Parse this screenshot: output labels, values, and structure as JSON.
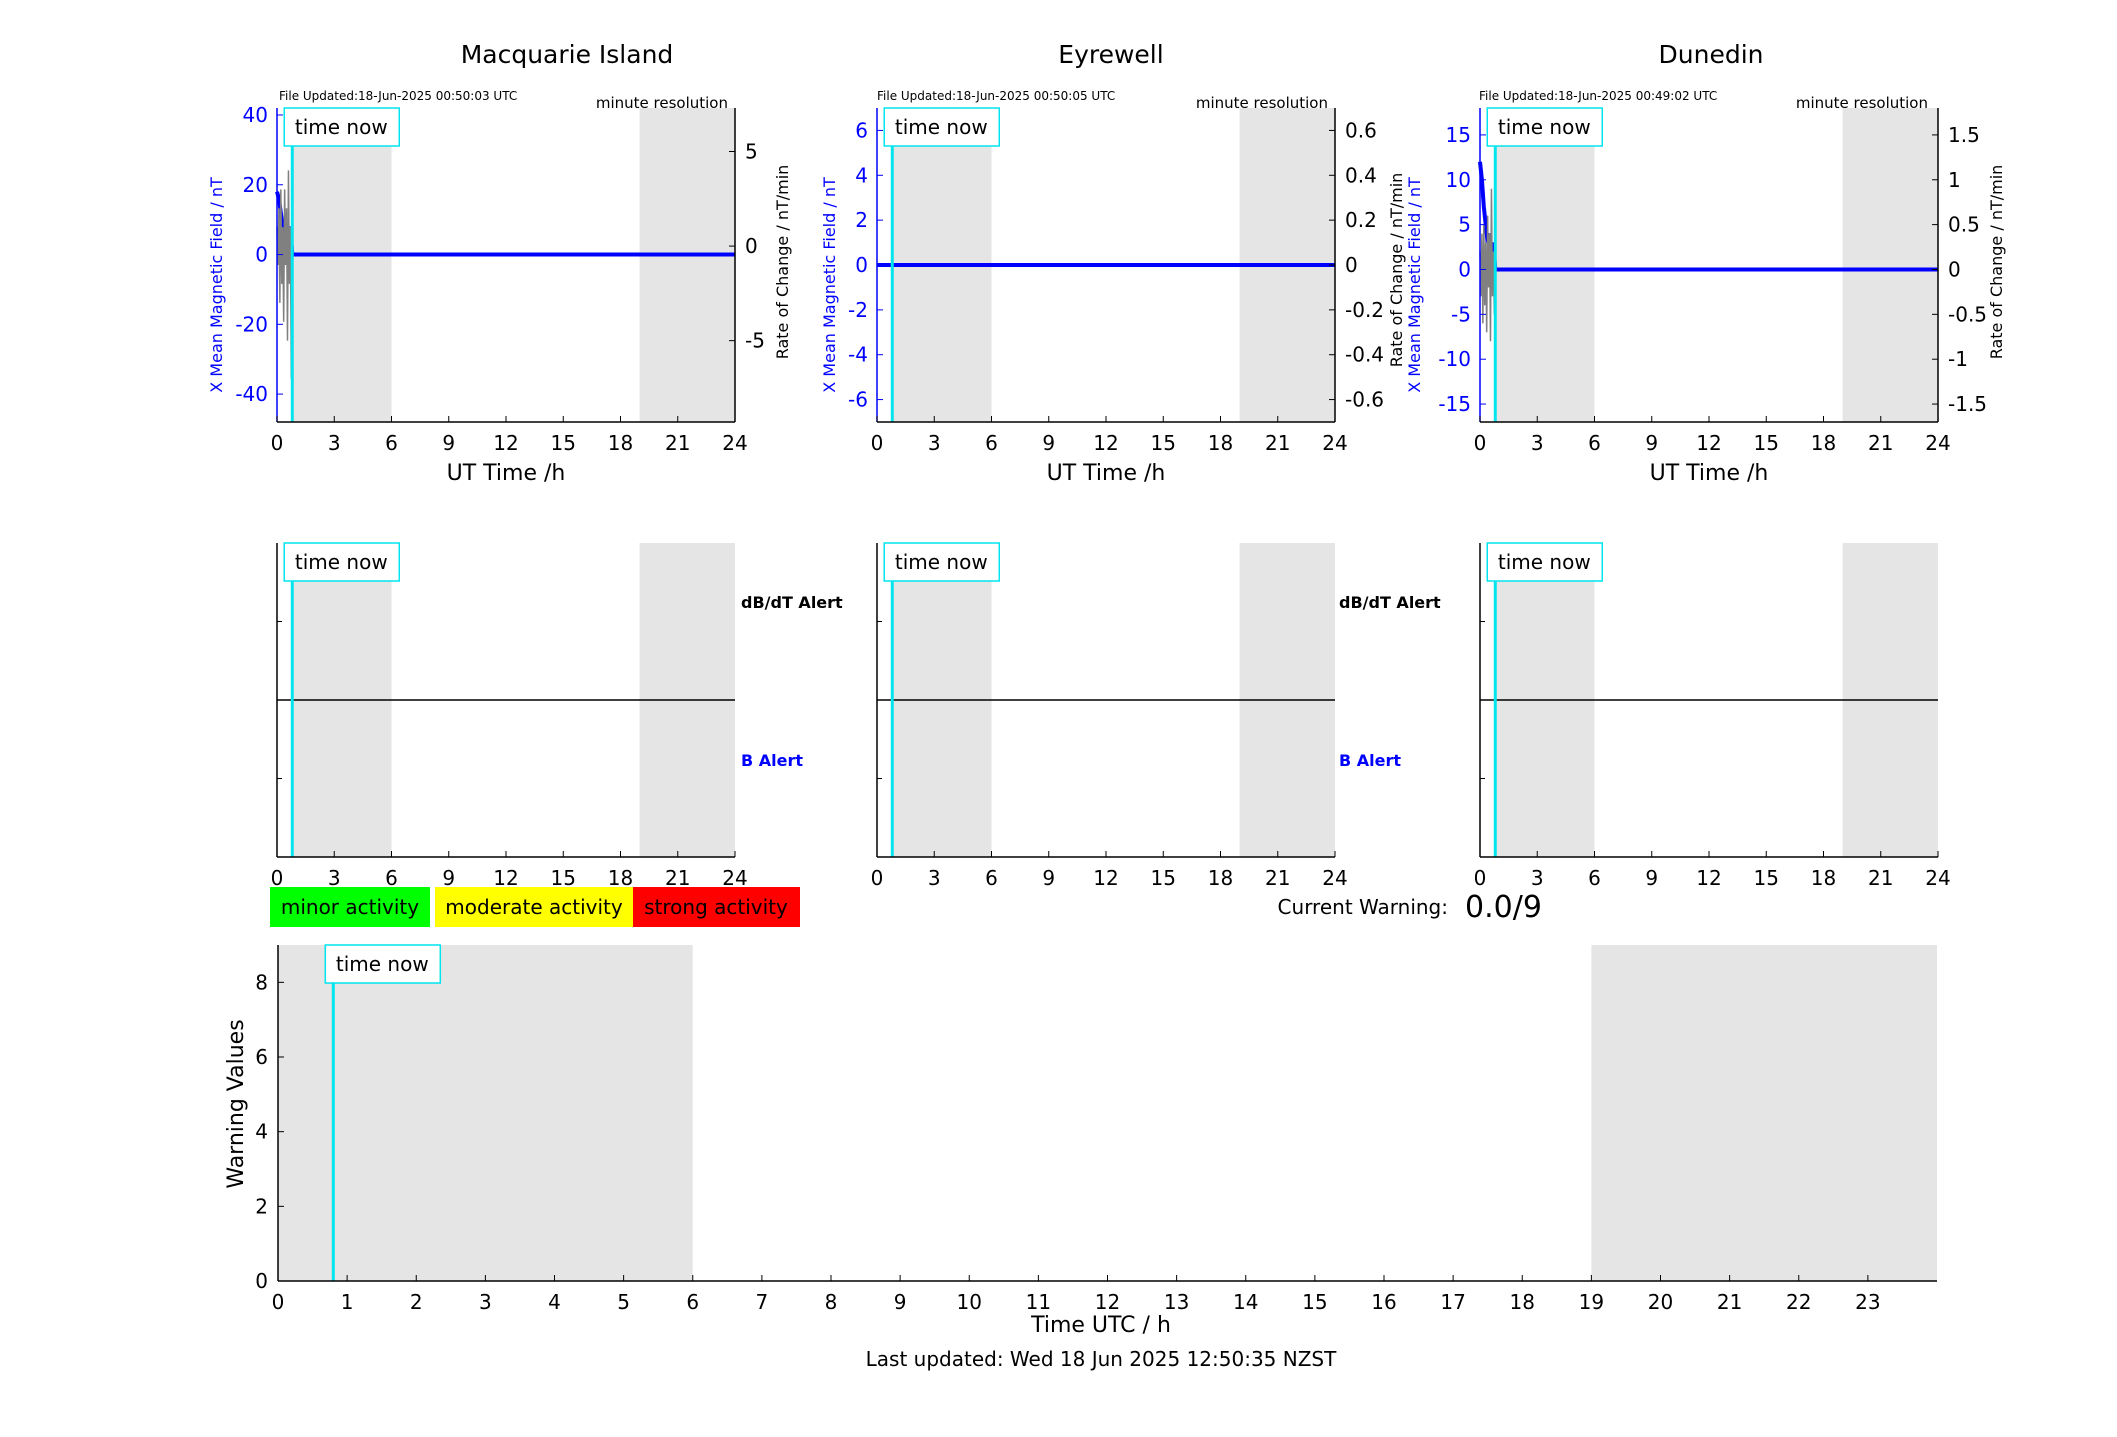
{
  "colors": {
    "night_shade": "#e5e5e5",
    "time_now": "#00e5ee",
    "x_field": "#0000ff",
    "rate": "#808080",
    "minor": "#00ff00",
    "moderate": "#ffff00",
    "strong": "#ff0000"
  },
  "common": {
    "time_now_label": "time now",
    "x_axis_label": "UT Time /h",
    "x_ticks": [
      "0",
      "3",
      "6",
      "9",
      "12",
      "15",
      "18",
      "21",
      "24"
    ],
    "resolution": "minute resolution",
    "dbdt_alert": "dB/dT Alert",
    "b_alert": "B Alert"
  },
  "stations": [
    {
      "name": "Macquarie Island",
      "file_updated": "File Updated:18-Jun-2025 00:50:03 UTC",
      "left_ylabel": "X Mean Magnetic Field / nT",
      "right_ylabel": "Rate of Change / nT/min",
      "left_ticks": [
        "40",
        "20",
        "0",
        "-20",
        "-40"
      ],
      "right_ticks": [
        "5",
        "0",
        "-5"
      ]
    },
    {
      "name": "Eyrewell",
      "file_updated": "File Updated:18-Jun-2025 00:50:05 UTC",
      "left_ylabel": "X Mean Magnetic Field / nT",
      "right_ylabel": "",
      "left_ticks": [
        "6",
        "4",
        "2",
        "0",
        "-2",
        "-4",
        "-6"
      ],
      "right_ticks": [
        "0.6",
        "0.4",
        "0.2",
        "0",
        "-0.2",
        "-0.4",
        "-0.6"
      ]
    },
    {
      "name": "Dunedin",
      "file_updated": "File Updated:18-Jun-2025 00:49:02 UTC",
      "left_ylabel": "X Mean Magnetic Field / nT",
      "right_ylabel": "Rate of Change / nT/min",
      "left_ticks": [
        "15",
        "10",
        "5",
        "0",
        "-5",
        "-10",
        "-15"
      ],
      "right_ticks": [
        "1.5",
        "1",
        "0.5",
        "0",
        "-0.5",
        "-1",
        "-1.5"
      ]
    }
  ],
  "overlap_label": "Rate of Change / nT/min",
  "legend": {
    "minor": "minor activity",
    "moderate": "moderate activity",
    "strong": "strong activity"
  },
  "current_warning": {
    "label": "Current Warning:",
    "value": "0.0/9"
  },
  "warning_chart": {
    "ylabel": "Warning Values",
    "xlabel": "Time UTC / h",
    "y_ticks": [
      "0",
      "2",
      "4",
      "6",
      "8"
    ],
    "x_ticks": [
      "0",
      "1",
      "2",
      "3",
      "4",
      "5",
      "6",
      "7",
      "8",
      "9",
      "10",
      "11",
      "12",
      "13",
      "14",
      "15",
      "16",
      "17",
      "18",
      "19",
      "20",
      "21",
      "22",
      "23"
    ]
  },
  "last_updated": "Last updated: Wed 18 Jun 2025 12:50:35 NZST",
  "chart_data": [
    {
      "type": "line",
      "title": "Macquarie Island",
      "xlabel": "UT Time /h",
      "ylabel": "X Mean Magnetic Field / nT",
      "y2label": "Rate of Change / nT/min",
      "xlim": [
        0,
        24
      ],
      "ylim": [
        -48,
        42
      ],
      "y2lim": [
        -9.3,
        7.3
      ],
      "time_now": 0.8,
      "night_bands": [
        [
          0.8,
          6
        ],
        [
          19,
          24
        ]
      ],
      "series": [
        {
          "axis": "left",
          "x": [
            0,
            0.1,
            0.2,
            0.3,
            0.4,
            0.5,
            0.6,
            0.7,
            0.8,
            0.9,
            24
          ],
          "y": [
            18,
            16,
            12,
            8,
            6,
            9,
            5,
            8,
            0,
            0,
            0
          ]
        },
        {
          "axis": "right",
          "x": [
            0,
            0.05,
            0.1,
            0.15,
            0.2,
            0.25,
            0.3,
            0.35,
            0.4,
            0.45,
            0.5,
            0.55,
            0.6,
            0.65,
            0.7,
            0.75,
            0.8
          ],
          "y": [
            1,
            -1,
            2,
            -3,
            3,
            -2,
            1,
            -4,
            3,
            -1,
            2,
            -5,
            4,
            -2,
            1,
            -7,
            0
          ]
        }
      ]
    },
    {
      "type": "line",
      "title": "Eyrewell",
      "xlabel": "UT Time /h",
      "ylabel": "X Mean Magnetic Field / nT",
      "xlim": [
        0,
        24
      ],
      "ylim": [
        -7,
        7
      ],
      "y2lim": [
        -0.7,
        0.7
      ],
      "time_now": 0.8,
      "night_bands": [
        [
          0.8,
          6
        ],
        [
          19,
          24
        ]
      ],
      "series": [
        {
          "axis": "left",
          "x": [
            0,
            24
          ],
          "y": [
            0,
            0
          ]
        }
      ]
    },
    {
      "type": "line",
      "title": "Dunedin",
      "xlabel": "UT Time /h",
      "ylabel": "X Mean Magnetic Field / nT",
      "y2label": "Rate of Change / nT/min",
      "xlim": [
        0,
        24
      ],
      "ylim": [
        -17,
        18
      ],
      "y2lim": [
        -1.7,
        1.8
      ],
      "time_now": 0.8,
      "night_bands": [
        [
          0.8,
          6
        ],
        [
          19,
          24
        ]
      ],
      "series": [
        {
          "axis": "left",
          "x": [
            0,
            0.1,
            0.2,
            0.3,
            0.4,
            0.5,
            0.6,
            0.7,
            0.8,
            0.9,
            24
          ],
          "y": [
            12,
            10,
            7,
            5,
            3,
            4,
            2,
            3,
            0,
            0,
            0
          ]
        },
        {
          "axis": "right",
          "x": [
            0,
            0.05,
            0.1,
            0.15,
            0.2,
            0.25,
            0.3,
            0.35,
            0.4,
            0.45,
            0.5,
            0.55,
            0.6,
            0.65,
            0.7,
            0.75,
            0.8
          ],
          "y": [
            0.2,
            -0.3,
            0.4,
            -0.6,
            0.5,
            -0.4,
            0.3,
            -0.7,
            0.6,
            -0.2,
            0.4,
            -0.8,
            0.9,
            -0.3,
            0.2,
            -0.5,
            0
          ]
        }
      ]
    },
    {
      "type": "line",
      "title": "",
      "xlabel": "Time UTC / h",
      "ylabel": "Warning Values",
      "xlim": [
        0,
        24
      ],
      "ylim": [
        0,
        9
      ],
      "time_now": 0.8,
      "night_bands": [
        [
          0,
          6
        ],
        [
          19,
          24
        ]
      ],
      "series": [
        {
          "x": [
            0,
            24
          ],
          "y": [
            0,
            0
          ]
        }
      ]
    }
  ]
}
